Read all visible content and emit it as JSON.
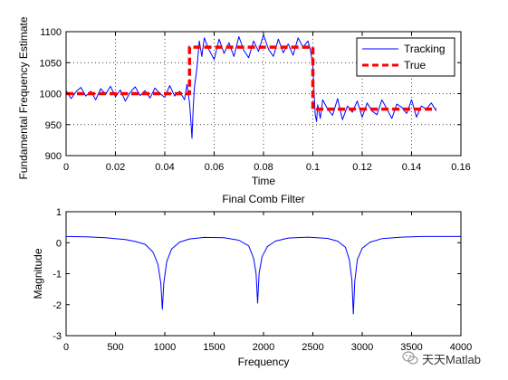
{
  "colors": {
    "tracking": "#0000ff",
    "true": "#ff0000",
    "comb": "#0000ff",
    "grid": "#000000"
  },
  "chart_data": [
    {
      "type": "line",
      "title": "",
      "xlabel": "Time",
      "ylabel": "Fundamental Frequency Estimate",
      "xlim": [
        0,
        0.16
      ],
      "ylim": [
        900,
        1100
      ],
      "x_ticks": [
        "0",
        "0.02",
        "0.04",
        "0.06",
        "0.08",
        "0.1",
        "0.12",
        "0.14",
        "0.16"
      ],
      "y_ticks": [
        "900",
        "950",
        "1000",
        "1050",
        "1100"
      ],
      "grid": true,
      "legend_position": "top-right",
      "series": [
        {
          "name": "Tracking",
          "style": "solid",
          "x": [
            0.0,
            0.002,
            0.004,
            0.006,
            0.008,
            0.01,
            0.012,
            0.014,
            0.016,
            0.018,
            0.02,
            0.022,
            0.024,
            0.026,
            0.028,
            0.03,
            0.032,
            0.034,
            0.036,
            0.038,
            0.04,
            0.042,
            0.044,
            0.046,
            0.048,
            0.049,
            0.05,
            0.0505,
            0.051,
            0.0515,
            0.052,
            0.053,
            0.054,
            0.055,
            0.056,
            0.058,
            0.06,
            0.062,
            0.064,
            0.066,
            0.068,
            0.07,
            0.072,
            0.074,
            0.076,
            0.078,
            0.08,
            0.082,
            0.084,
            0.086,
            0.088,
            0.09,
            0.092,
            0.094,
            0.096,
            0.098,
            0.099,
            0.1,
            0.1005,
            0.101,
            0.1015,
            0.102,
            0.103,
            0.104,
            0.106,
            0.108,
            0.11,
            0.112,
            0.114,
            0.116,
            0.118,
            0.12,
            0.122,
            0.124,
            0.126,
            0.128,
            0.13,
            0.132,
            0.134,
            0.136,
            0.138,
            0.14,
            0.142,
            0.144,
            0.146,
            0.148,
            0.15
          ],
          "y": [
            1005,
            992,
            1003,
            1010,
            996,
            1004,
            990,
            1008,
            999,
            1012,
            995,
            1006,
            988,
            1002,
            1011,
            997,
            1005,
            993,
            1009,
            1000,
            994,
            1013,
            996,
            1004,
            990,
            1015,
            985,
            960,
            928,
            975,
            1010,
            1040,
            1085,
            1060,
            1090,
            1070,
            1055,
            1088,
            1065,
            1082,
            1060,
            1092,
            1070,
            1058,
            1085,
            1068,
            1095,
            1072,
            1060,
            1088,
            1066,
            1080,
            1062,
            1090,
            1075,
            1085,
            1070,
            1045,
            1000,
            965,
            955,
            982,
            960,
            990,
            975,
            965,
            992,
            958,
            980,
            970,
            988,
            962,
            985,
            972,
            966,
            990,
            975,
            960,
            983,
            978,
            968,
            990,
            962,
            980,
            975,
            985,
            972
          ]
        },
        {
          "name": "True",
          "style": "dashed",
          "x": [
            0.0,
            0.05,
            0.05,
            0.1,
            0.1,
            0.15
          ],
          "y": [
            1000,
            1000,
            1075,
            1075,
            975,
            975
          ]
        }
      ]
    },
    {
      "type": "line",
      "title": "Final Comb Filter",
      "xlabel": "Frequency",
      "ylabel": "Magnitude",
      "xlim": [
        0,
        4000
      ],
      "ylim": [
        -3,
        1
      ],
      "x_ticks": [
        "0",
        "500",
        "1000",
        "1500",
        "2000",
        "2500",
        "3000",
        "3500",
        "4000"
      ],
      "y_ticks": [
        "-3",
        "-2",
        "-1",
        "0",
        "1"
      ],
      "grid": false,
      "series": [
        {
          "x": [
            0,
            200,
            400,
            600,
            700,
            800,
            880,
            930,
            960,
            975,
            990,
            1020,
            1070,
            1150,
            1250,
            1400,
            1600,
            1750,
            1850,
            1900,
            1925,
            1940,
            1955,
            1985,
            2040,
            2120,
            2250,
            2450,
            2650,
            2750,
            2830,
            2870,
            2895,
            2910,
            2925,
            2950,
            3000,
            3080,
            3200,
            3400,
            3600,
            3800,
            4000
          ],
          "y": [
            0.2,
            0.19,
            0.16,
            0.1,
            0.04,
            -0.05,
            -0.3,
            -0.7,
            -1.3,
            -2.15,
            -1.3,
            -0.6,
            -0.2,
            0.02,
            0.12,
            0.17,
            0.16,
            0.08,
            -0.1,
            -0.5,
            -1.0,
            -1.95,
            -1.0,
            -0.45,
            -0.12,
            0.05,
            0.15,
            0.18,
            0.14,
            0.05,
            -0.15,
            -0.55,
            -1.2,
            -2.3,
            -1.25,
            -0.55,
            -0.18,
            0.02,
            0.13,
            0.18,
            0.2,
            0.2,
            0.2
          ]
        }
      ]
    }
  ],
  "watermark": {
    "text": "天天Matlab",
    "icon": "wechat-icon"
  }
}
